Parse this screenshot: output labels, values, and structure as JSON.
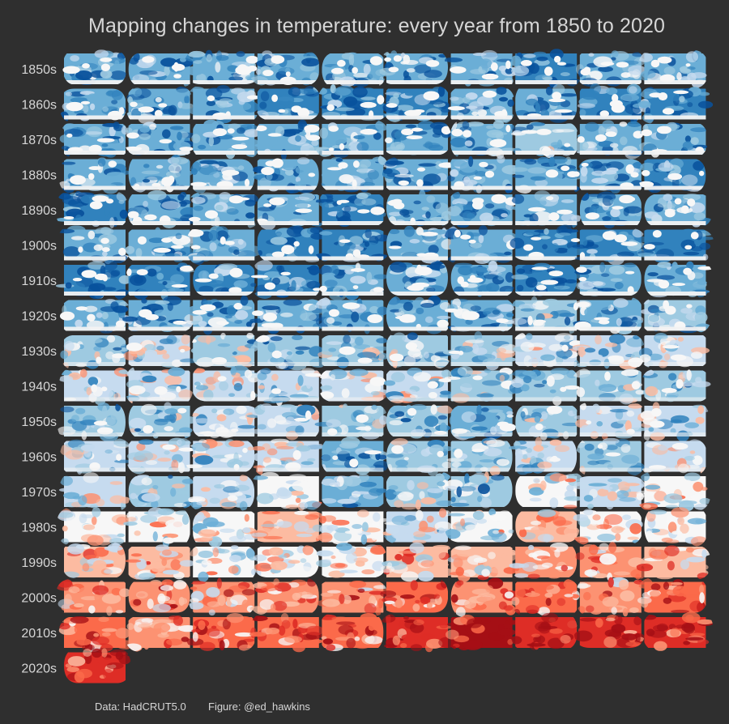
{
  "title": "Mapping changes in temperature: every year from 1850 to 2020",
  "footer": {
    "source": "Data: HadCRUT5.0",
    "credit": "Figure: @ed_hawkins"
  },
  "colors": {
    "background": "#2f2f2f",
    "text": "#d6d6d6",
    "scale": [
      "#08519c",
      "#3182bd",
      "#6baed6",
      "#9ecae1",
      "#c6dbef",
      "#f7f7f7",
      "#fcbba1",
      "#fc9272",
      "#fb6a4a",
      "#de2d26",
      "#a50f15"
    ]
  },
  "chart_data": {
    "type": "heatmap",
    "description_of_cells": "small world-map tiles of annual temperature anomaly, blue = cooler, red = warmer",
    "rows": [
      "1850s",
      "1860s",
      "1870s",
      "1880s",
      "1890s",
      "1900s",
      "1910s",
      "1920s",
      "1930s",
      "1940s",
      "1950s",
      "1960s",
      "1970s",
      "1980s",
      "1990s",
      "2000s",
      "2010s",
      "2020s"
    ],
    "columns_per_row": 10,
    "years_per_row": [
      10,
      10,
      10,
      10,
      10,
      10,
      10,
      10,
      10,
      10,
      10,
      10,
      10,
      10,
      10,
      10,
      10,
      1
    ],
    "anomaly": [
      [
        -0.35,
        -0.25,
        -0.35,
        -0.35,
        -0.3,
        -0.3,
        -0.35,
        -0.45,
        -0.25,
        -0.25
      ],
      [
        -0.35,
        -0.3,
        -0.3,
        -0.4,
        -0.4,
        -0.4,
        -0.35,
        -0.35,
        -0.45,
        -0.4
      ],
      [
        -0.3,
        -0.25,
        -0.3,
        -0.35,
        -0.25,
        -0.3,
        -0.3,
        -0.2,
        -0.25,
        -0.25
      ],
      [
        -0.3,
        -0.25,
        -0.25,
        -0.35,
        -0.3,
        -0.3,
        -0.35,
        -0.35,
        -0.35,
        -0.4
      ],
      [
        -0.4,
        -0.3,
        -0.35,
        -0.35,
        -0.4,
        -0.35,
        -0.25,
        -0.3,
        -0.35,
        -0.3
      ],
      [
        -0.3,
        -0.25,
        -0.3,
        -0.4,
        -0.45,
        -0.35,
        -0.3,
        -0.4,
        -0.4,
        -0.45
      ],
      [
        -0.45,
        -0.45,
        -0.4,
        -0.4,
        -0.35,
        -0.3,
        -0.35,
        -0.4,
        -0.35,
        -0.3
      ],
      [
        -0.3,
        -0.3,
        -0.3,
        -0.3,
        -0.3,
        -0.25,
        -0.25,
        -0.2,
        -0.25,
        -0.2
      ],
      [
        -0.1,
        -0.05,
        -0.1,
        -0.2,
        -0.15,
        -0.15,
        -0.1,
        -0.05,
        -0.05,
        -0.05
      ],
      [
        0.05,
        0.05,
        0.0,
        0.0,
        0.05,
        -0.05,
        -0.1,
        -0.1,
        -0.1,
        -0.15
      ],
      [
        -0.2,
        -0.1,
        -0.05,
        -0.05,
        -0.15,
        -0.2,
        -0.25,
        -0.1,
        -0.05,
        -0.05
      ],
      [
        -0.05,
        0.0,
        0.0,
        0.05,
        -0.25,
        -0.15,
        -0.1,
        -0.05,
        -0.1,
        0.05
      ],
      [
        0.0,
        -0.1,
        -0.05,
        0.1,
        -0.25,
        -0.1,
        -0.15,
        0.1,
        0.0,
        0.1
      ],
      [
        0.2,
        0.2,
        0.1,
        0.25,
        0.1,
        0.05,
        0.1,
        0.25,
        0.2,
        0.1
      ],
      [
        0.3,
        0.25,
        0.1,
        0.15,
        0.2,
        0.35,
        0.25,
        0.4,
        0.45,
        0.35
      ],
      [
        0.45,
        0.5,
        0.5,
        0.5,
        0.5,
        0.55,
        0.5,
        0.55,
        0.45,
        0.55
      ],
      [
        0.65,
        0.5,
        0.55,
        0.6,
        0.6,
        0.75,
        0.85,
        0.8,
        0.7,
        0.8
      ],
      [
        0.75
      ]
    ]
  }
}
